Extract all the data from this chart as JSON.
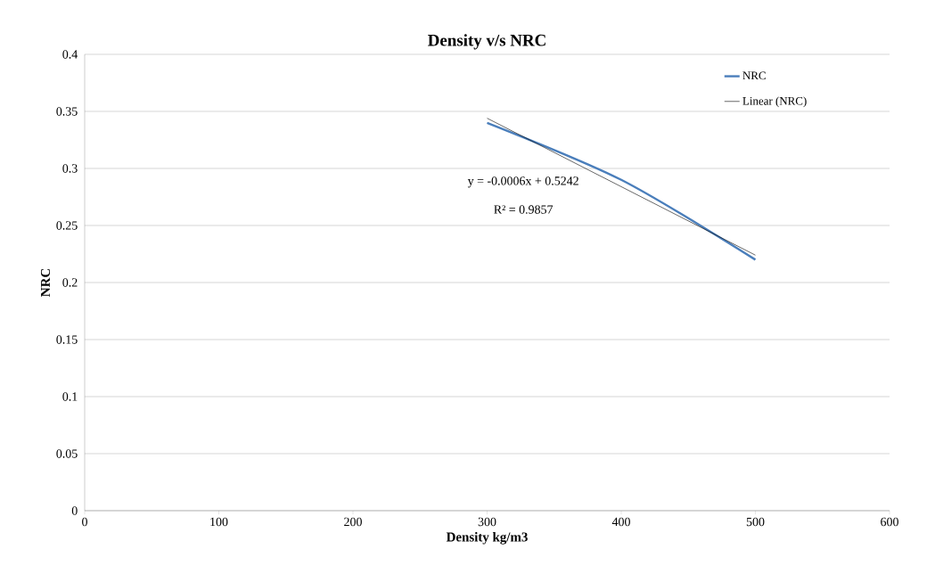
{
  "chart_data": {
    "type": "line",
    "title": "Density v/s NRC",
    "xlabel": "Density kg/m3",
    "ylabel": "NRC",
    "x": [
      300,
      400,
      500
    ],
    "series": [
      {
        "name": "NRC",
        "color": "#4a7ebb",
        "values": [
          0.34,
          0.29,
          0.22
        ]
      },
      {
        "name": "Linear (NRC)",
        "color": "#000000",
        "type": "line",
        "x": [
          300,
          500
        ],
        "values": [
          0.344,
          0.224
        ]
      }
    ],
    "xlim": [
      0,
      600
    ],
    "ylim": [
      0,
      0.4
    ],
    "xticks": [
      0,
      100,
      200,
      300,
      400,
      500,
      600
    ],
    "yticks": [
      0,
      0.05,
      0.1,
      0.15,
      0.2,
      0.25,
      0.3,
      0.35,
      0.4
    ],
    "grid": "y",
    "legend": "top right",
    "marker": "none",
    "line_style": "solid",
    "annotations": [
      "y = -0.0006x + 0.5242",
      "R² = 0.9857"
    ]
  }
}
